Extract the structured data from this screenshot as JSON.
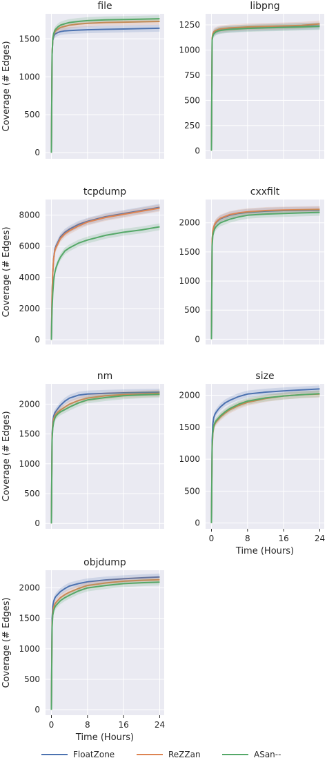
{
  "series_names": [
    "FloatZone",
    "ReZZan",
    "ASan--"
  ],
  "colors": {
    "FloatZone": "#4c72b0",
    "ReZZan": "#dd8452",
    "ASan--": "#55a868",
    "panel_bg": "#eaeaf2",
    "grid": "#ffffff"
  },
  "chart_data": [
    {
      "type": "line",
      "title": "file",
      "ylabel": "Coverage (# Edges)",
      "xlabel": "",
      "ylim": [
        -80,
        1830
      ],
      "yticks": [
        0,
        500,
        1000,
        1500
      ],
      "xlim": [
        -1.3,
        25
      ],
      "xticks": [
        0,
        8,
        16,
        24
      ],
      "show_xticklabels": false,
      "x": [
        0,
        0.15,
        0.3,
        0.5,
        0.75,
        1,
        1.5,
        2,
        3,
        4,
        6,
        8,
        12,
        16,
        20,
        24
      ],
      "series": [
        {
          "name": "FloatZone",
          "values": [
            0,
            1300,
            1480,
            1530,
            1560,
            1570,
            1585,
            1595,
            1605,
            1610,
            1615,
            1620,
            1625,
            1630,
            1635,
            1640
          ]
        },
        {
          "name": "ReZZan",
          "values": [
            0,
            1300,
            1500,
            1560,
            1590,
            1610,
            1630,
            1650,
            1665,
            1680,
            1695,
            1705,
            1715,
            1720,
            1725,
            1730
          ]
        },
        {
          "name": "ASan--",
          "values": [
            0,
            1300,
            1500,
            1570,
            1610,
            1630,
            1660,
            1680,
            1700,
            1715,
            1730,
            1740,
            1750,
            1755,
            1760,
            1765
          ]
        }
      ]
    },
    {
      "type": "line",
      "title": "libpng",
      "ylabel": "",
      "xlabel": "",
      "ylim": [
        -80,
        1360
      ],
      "yticks": [
        0,
        250,
        500,
        750,
        1000,
        1250
      ],
      "xlim": [
        -1.3,
        25
      ],
      "xticks": [
        0,
        8,
        16,
        24
      ],
      "show_xticklabels": false,
      "x": [
        0,
        0.15,
        0.3,
        0.5,
        0.75,
        1,
        1.5,
        2,
        3,
        4,
        6,
        8,
        12,
        16,
        20,
        24
      ],
      "series": [
        {
          "name": "FloatZone",
          "values": [
            0,
            1100,
            1150,
            1170,
            1180,
            1185,
            1195,
            1200,
            1205,
            1210,
            1215,
            1220,
            1225,
            1230,
            1235,
            1240
          ]
        },
        {
          "name": "ReZZan",
          "values": [
            0,
            1120,
            1160,
            1180,
            1190,
            1195,
            1205,
            1210,
            1215,
            1220,
            1225,
            1230,
            1235,
            1240,
            1245,
            1260
          ]
        },
        {
          "name": "ASan--",
          "values": [
            0,
            1100,
            1140,
            1160,
            1170,
            1180,
            1190,
            1195,
            1200,
            1205,
            1210,
            1215,
            1220,
            1225,
            1230,
            1235
          ]
        }
      ]
    },
    {
      "type": "line",
      "title": "tcpdump",
      "ylabel": "Coverage (# Edges)",
      "xlabel": "",
      "ylim": [
        -300,
        9000
      ],
      "yticks": [
        0,
        2000,
        4000,
        6000,
        8000
      ],
      "xlim": [
        -1.3,
        25
      ],
      "xticks": [
        0,
        8,
        16,
        24
      ],
      "show_xticklabels": false,
      "x": [
        0,
        0.15,
        0.3,
        0.5,
        0.75,
        1,
        1.5,
        2,
        3,
        4,
        6,
        8,
        12,
        16,
        20,
        24
      ],
      "series": [
        {
          "name": "FloatZone",
          "values": [
            0,
            3000,
            4300,
            5200,
            5800,
            6000,
            6300,
            6600,
            6900,
            7100,
            7400,
            7600,
            7900,
            8100,
            8300,
            8500
          ]
        },
        {
          "name": "ReZZan",
          "values": [
            0,
            3000,
            4300,
            5200,
            5700,
            5900,
            6200,
            6500,
            6800,
            7000,
            7300,
            7550,
            7850,
            8050,
            8250,
            8450
          ]
        },
        {
          "name": "ASan--",
          "values": [
            0,
            2000,
            3000,
            3800,
            4300,
            4600,
            5000,
            5300,
            5700,
            5900,
            6200,
            6400,
            6700,
            6900,
            7050,
            7250
          ]
        }
      ]
    },
    {
      "type": "line",
      "title": "cxxfilt",
      "ylabel": "",
      "xlabel": "",
      "ylim": [
        -90,
        2400
      ],
      "yticks": [
        0,
        500,
        1000,
        1500,
        2000
      ],
      "xlim": [
        -1.3,
        25
      ],
      "xticks": [
        0,
        8,
        16,
        24
      ],
      "show_xticklabels": false,
      "x": [
        0,
        0.15,
        0.3,
        0.5,
        0.75,
        1,
        1.5,
        2,
        3,
        4,
        6,
        8,
        12,
        16,
        20,
        24
      ],
      "series": [
        {
          "name": "FloatZone",
          "values": [
            0,
            1700,
            1850,
            1920,
            1970,
            2000,
            2040,
            2070,
            2100,
            2130,
            2160,
            2180,
            2200,
            2210,
            2215,
            2220
          ]
        },
        {
          "name": "ReZZan",
          "values": [
            0,
            1700,
            1860,
            1930,
            1980,
            2010,
            2050,
            2080,
            2110,
            2140,
            2170,
            2190,
            2210,
            2220,
            2225,
            2230
          ]
        },
        {
          "name": "ASan--",
          "values": [
            0,
            1600,
            1780,
            1850,
            1900,
            1930,
            1970,
            2000,
            2030,
            2060,
            2100,
            2130,
            2150,
            2160,
            2170,
            2180
          ]
        }
      ]
    },
    {
      "type": "line",
      "title": "nm",
      "ylabel": "Coverage (# Edges)",
      "xlabel": "",
      "ylim": [
        -90,
        2340
      ],
      "yticks": [
        0,
        500,
        1000,
        1500,
        2000
      ],
      "xlim": [
        -1.3,
        25
      ],
      "xticks": [
        0,
        8,
        16,
        24
      ],
      "show_xticklabels": false,
      "x": [
        0,
        0.15,
        0.3,
        0.5,
        0.75,
        1,
        1.5,
        2,
        3,
        4,
        6,
        8,
        12,
        16,
        20,
        24
      ],
      "series": [
        {
          "name": "FloatZone",
          "values": [
            0,
            1500,
            1700,
            1800,
            1850,
            1880,
            1930,
            1980,
            2050,
            2100,
            2150,
            2170,
            2180,
            2190,
            2195,
            2200
          ]
        },
        {
          "name": "ReZZan",
          "values": [
            0,
            1450,
            1650,
            1750,
            1800,
            1830,
            1870,
            1900,
            1950,
            2000,
            2060,
            2100,
            2140,
            2160,
            2170,
            2180
          ]
        },
        {
          "name": "ASan--",
          "values": [
            0,
            1400,
            1600,
            1700,
            1760,
            1800,
            1840,
            1870,
            1910,
            1950,
            2020,
            2070,
            2110,
            2140,
            2155,
            2165
          ]
        }
      ]
    },
    {
      "type": "line",
      "title": "size",
      "ylabel": "",
      "xlabel": "Time (Hours)",
      "ylim": [
        -90,
        2180
      ],
      "yticks": [
        0,
        500,
        1000,
        1500,
        2000
      ],
      "xlim": [
        -1.3,
        25
      ],
      "xticks": [
        0,
        8,
        16,
        24
      ],
      "show_xticklabels": true,
      "x": [
        0,
        0.15,
        0.3,
        0.5,
        0.75,
        1,
        1.5,
        2,
        3,
        4,
        6,
        8,
        12,
        16,
        20,
        24
      ],
      "series": [
        {
          "name": "FloatZone",
          "values": [
            0,
            1300,
            1550,
            1650,
            1700,
            1730,
            1780,
            1820,
            1880,
            1920,
            1980,
            2020,
            2050,
            2070,
            2085,
            2100
          ]
        },
        {
          "name": "ReZZan",
          "values": [
            0,
            1150,
            1400,
            1500,
            1550,
            1580,
            1620,
            1660,
            1720,
            1770,
            1840,
            1890,
            1950,
            1990,
            2010,
            2020
          ]
        },
        {
          "name": "ASan--",
          "values": [
            0,
            1200,
            1420,
            1520,
            1570,
            1600,
            1640,
            1680,
            1740,
            1790,
            1860,
            1910,
            1960,
            1990,
            2010,
            2025
          ]
        }
      ]
    },
    {
      "type": "line",
      "title": "objdump",
      "ylabel": "Coverage (# Edges)",
      "xlabel": "Time (Hours)",
      "ylim": [
        -90,
        2290
      ],
      "yticks": [
        0,
        500,
        1000,
        1500,
        2000
      ],
      "xlim": [
        -1.3,
        25
      ],
      "xticks": [
        0,
        8,
        16,
        24
      ],
      "show_xticklabels": true,
      "x": [
        0,
        0.15,
        0.3,
        0.5,
        0.75,
        1,
        1.5,
        2,
        3,
        4,
        6,
        8,
        12,
        16,
        20,
        24
      ],
      "series": [
        {
          "name": "FloatZone",
          "values": [
            0,
            1500,
            1700,
            1780,
            1830,
            1860,
            1900,
            1940,
            1990,
            2030,
            2070,
            2100,
            2130,
            2150,
            2165,
            2180
          ]
        },
        {
          "name": "ReZZan",
          "values": [
            0,
            1400,
            1600,
            1680,
            1730,
            1760,
            1800,
            1840,
            1890,
            1930,
            1990,
            2040,
            2080,
            2110,
            2125,
            2135
          ]
        },
        {
          "name": "ASan--",
          "values": [
            0,
            1350,
            1550,
            1630,
            1680,
            1710,
            1750,
            1790,
            1840,
            1880,
            1950,
            2000,
            2040,
            2070,
            2085,
            2095
          ]
        }
      ]
    }
  ]
}
